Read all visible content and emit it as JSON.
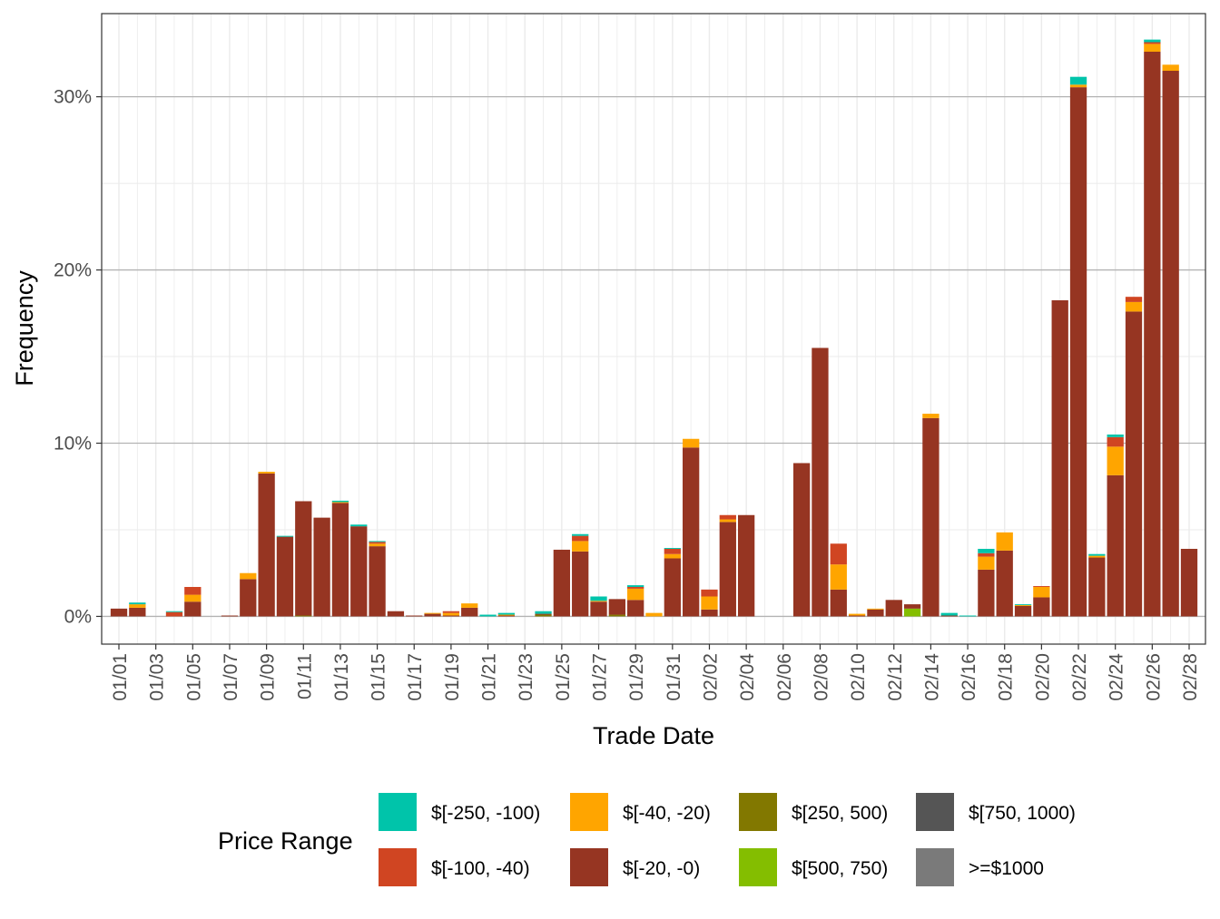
{
  "chart_data": {
    "type": "bar",
    "stacked": true,
    "xlabel": "Trade Date",
    "ylabel": "Frequency",
    "ylim": [
      -1.6,
      34.8
    ],
    "yticks": [
      0,
      10,
      20,
      30
    ],
    "ytick_labels": [
      "0%",
      "10%",
      "20%",
      "30%"
    ],
    "grid": true,
    "legend_title": "Price Range",
    "legend_position": "bottom",
    "categories": [
      "01/01",
      "01/02",
      "01/03",
      "01/04",
      "01/05",
      "01/06",
      "01/07",
      "01/08",
      "01/09",
      "01/10",
      "01/11",
      "01/12",
      "01/13",
      "01/14",
      "01/15",
      "01/16",
      "01/17",
      "01/18",
      "01/19",
      "01/20",
      "01/21",
      "01/22",
      "01/23",
      "01/24",
      "01/25",
      "01/26",
      "01/27",
      "01/28",
      "01/29",
      "01/30",
      "01/31",
      "02/01",
      "02/02",
      "02/03",
      "02/04",
      "02/05",
      "02/06",
      "02/07",
      "02/08",
      "02/09",
      "02/10",
      "02/11",
      "02/12",
      "02/13",
      "02/14",
      "02/15",
      "02/16",
      "02/17",
      "02/18",
      "02/19",
      "02/20",
      "02/21",
      "02/22",
      "02/23",
      "02/24",
      "02/25",
      "02/26",
      "02/27",
      "02/28"
    ],
    "xtick_labels": [
      "01/01",
      "01/03",
      "01/05",
      "01/07",
      "01/09",
      "01/11",
      "01/13",
      "01/15",
      "01/17",
      "01/19",
      "01/21",
      "01/23",
      "01/25",
      "01/27",
      "01/29",
      "01/31",
      "02/02",
      "02/04",
      "02/06",
      "02/08",
      "02/10",
      "02/12",
      "02/14",
      "02/16",
      "02/18",
      "02/20",
      "02/22",
      "02/24",
      "02/26",
      "02/28"
    ],
    "series": [
      {
        "name": "$[-250, -100)",
        "color": "#00C4AA",
        "values": [
          0,
          0.1,
          0,
          0.05,
          0,
          0,
          0,
          0,
          0,
          0.05,
          0,
          0,
          0.08,
          0.1,
          0.05,
          0,
          0,
          0,
          0,
          0,
          0.1,
          0.1,
          0,
          0.15,
          0,
          0.1,
          0.25,
          0,
          0.1,
          0,
          0.05,
          0,
          0,
          0,
          0,
          0,
          0,
          0,
          0,
          0,
          0,
          0,
          0,
          0,
          0,
          0.15,
          0.05,
          0.25,
          0,
          0.05,
          0,
          0,
          0.45,
          0.1,
          0.15,
          0,
          0.15,
          0,
          0
        ]
      },
      {
        "name": "$[-100, -40)",
        "color": "#D04522",
        "values": [
          0,
          0,
          0,
          0.25,
          0.45,
          0,
          0,
          0,
          0,
          0,
          0,
          0,
          0,
          0,
          0.1,
          0,
          0,
          0,
          0.1,
          0,
          0,
          0,
          0,
          0,
          0,
          0.3,
          0,
          0,
          0.1,
          0,
          0.3,
          0,
          0.4,
          0.25,
          0,
          0,
          0,
          0,
          0,
          1.2,
          0,
          0,
          0,
          0,
          0,
          0,
          0,
          0.2,
          0,
          0,
          0.05,
          0,
          0,
          0,
          0.55,
          0.3,
          0.1,
          0,
          0
        ]
      },
      {
        "name": "$[-40, -20)",
        "color": "#FFA500",
        "values": [
          0,
          0.2,
          0,
          0,
          0.4,
          0,
          0,
          0.35,
          0.1,
          0,
          0,
          0,
          0.05,
          0,
          0.15,
          0,
          0,
          0.05,
          0.15,
          0.25,
          0,
          0.05,
          0,
          0,
          0,
          0.6,
          0.05,
          0,
          0.65,
          0.2,
          0.25,
          0.5,
          0.75,
          0.15,
          0,
          0,
          0,
          0,
          0,
          1.45,
          0.1,
          0.05,
          0,
          0,
          0.25,
          0,
          0,
          0.75,
          1.05,
          0.05,
          0.6,
          0,
          0.15,
          0.1,
          1.65,
          0.55,
          0.45,
          0.35,
          0
        ]
      },
      {
        "name": "$[-20, -0)",
        "color": "#963522",
        "values": [
          0.45,
          0.5,
          0,
          0,
          0.85,
          0,
          0.05,
          2.15,
          8.25,
          4.6,
          6.6,
          5.7,
          6.55,
          5.2,
          4.05,
          0.3,
          0.05,
          0.15,
          0.05,
          0.5,
          0,
          0.05,
          0,
          0.05,
          3.85,
          3.75,
          0.85,
          0.9,
          0.95,
          0,
          3.35,
          9.75,
          0.4,
          5.45,
          5.85,
          0,
          0,
          8.85,
          15.5,
          1.55,
          0.05,
          0.4,
          0.95,
          0.25,
          11.45,
          0.05,
          0,
          2.7,
          3.8,
          0.6,
          1.1,
          18.25,
          30.55,
          3.4,
          8.15,
          17.6,
          32.6,
          31.5,
          3.9
        ]
      },
      {
        "name": "$[250, 500)",
        "color": "#827800",
        "values": [
          0,
          0,
          0,
          0,
          0,
          0,
          0,
          0,
          0,
          0,
          0.05,
          0,
          0,
          0,
          0,
          0,
          0,
          0,
          0,
          0,
          0,
          0,
          0,
          0.1,
          0,
          0,
          0,
          0.1,
          0,
          0,
          0,
          0,
          0,
          0,
          0,
          0,
          0,
          0,
          0,
          0,
          0,
          0,
          0,
          0,
          0,
          0,
          0,
          0,
          0,
          0,
          0,
          0,
          0,
          0,
          0,
          0,
          0,
          0,
          0
        ]
      },
      {
        "name": "$[500, 750)",
        "color": "#84BE00",
        "values": [
          0,
          0,
          0,
          0,
          0,
          0,
          0,
          0,
          0,
          0,
          0,
          0,
          0,
          0,
          0,
          0,
          0,
          0,
          0,
          0,
          0,
          0,
          0,
          0,
          0,
          0,
          0,
          0,
          0,
          0,
          0,
          0,
          0,
          0,
          0,
          0,
          0,
          0,
          0,
          0,
          0,
          0,
          0,
          0.45,
          0,
          0,
          0,
          0,
          0,
          0,
          0,
          0,
          0,
          0,
          0,
          0,
          0,
          0,
          0
        ]
      },
      {
        "name": "$[750, 1000)",
        "color": "#555555",
        "values": [
          0,
          0,
          0,
          0,
          0,
          0,
          0,
          0,
          0,
          0,
          0,
          0,
          0,
          0,
          0,
          0,
          0,
          0,
          0,
          0,
          0,
          0,
          0,
          0,
          0,
          0,
          0,
          0,
          0,
          0,
          0,
          0,
          0,
          0,
          0,
          0,
          0,
          0,
          0,
          0,
          0,
          0,
          0,
          0,
          0,
          0,
          0,
          0,
          0,
          0,
          0,
          0,
          0,
          0,
          0,
          0,
          0,
          0,
          0
        ]
      },
      {
        "name": ">=$1000",
        "color": "#7A7A7A",
        "values": [
          0,
          0,
          0,
          0,
          0,
          0,
          0,
          0,
          0,
          0,
          0,
          0,
          0,
          0,
          0,
          0,
          0,
          0,
          0,
          0,
          0,
          0,
          0,
          0,
          0,
          0,
          0,
          0,
          0,
          0,
          0,
          0,
          0,
          0,
          0,
          0,
          0,
          0,
          0,
          0,
          0,
          0,
          0,
          0,
          0,
          0,
          0,
          0,
          0,
          0,
          0,
          0,
          0,
          0,
          0,
          0,
          0,
          0,
          0
        ]
      }
    ],
    "stack_order_bottom_to_top": [
      ">=$1000",
      "$[750, 1000)",
      "$[500, 750)",
      "$[250, 500)",
      "$[-20, -0)",
      "$[-40, -20)",
      "$[-100, -40)",
      "$[-250, -100)"
    ]
  }
}
